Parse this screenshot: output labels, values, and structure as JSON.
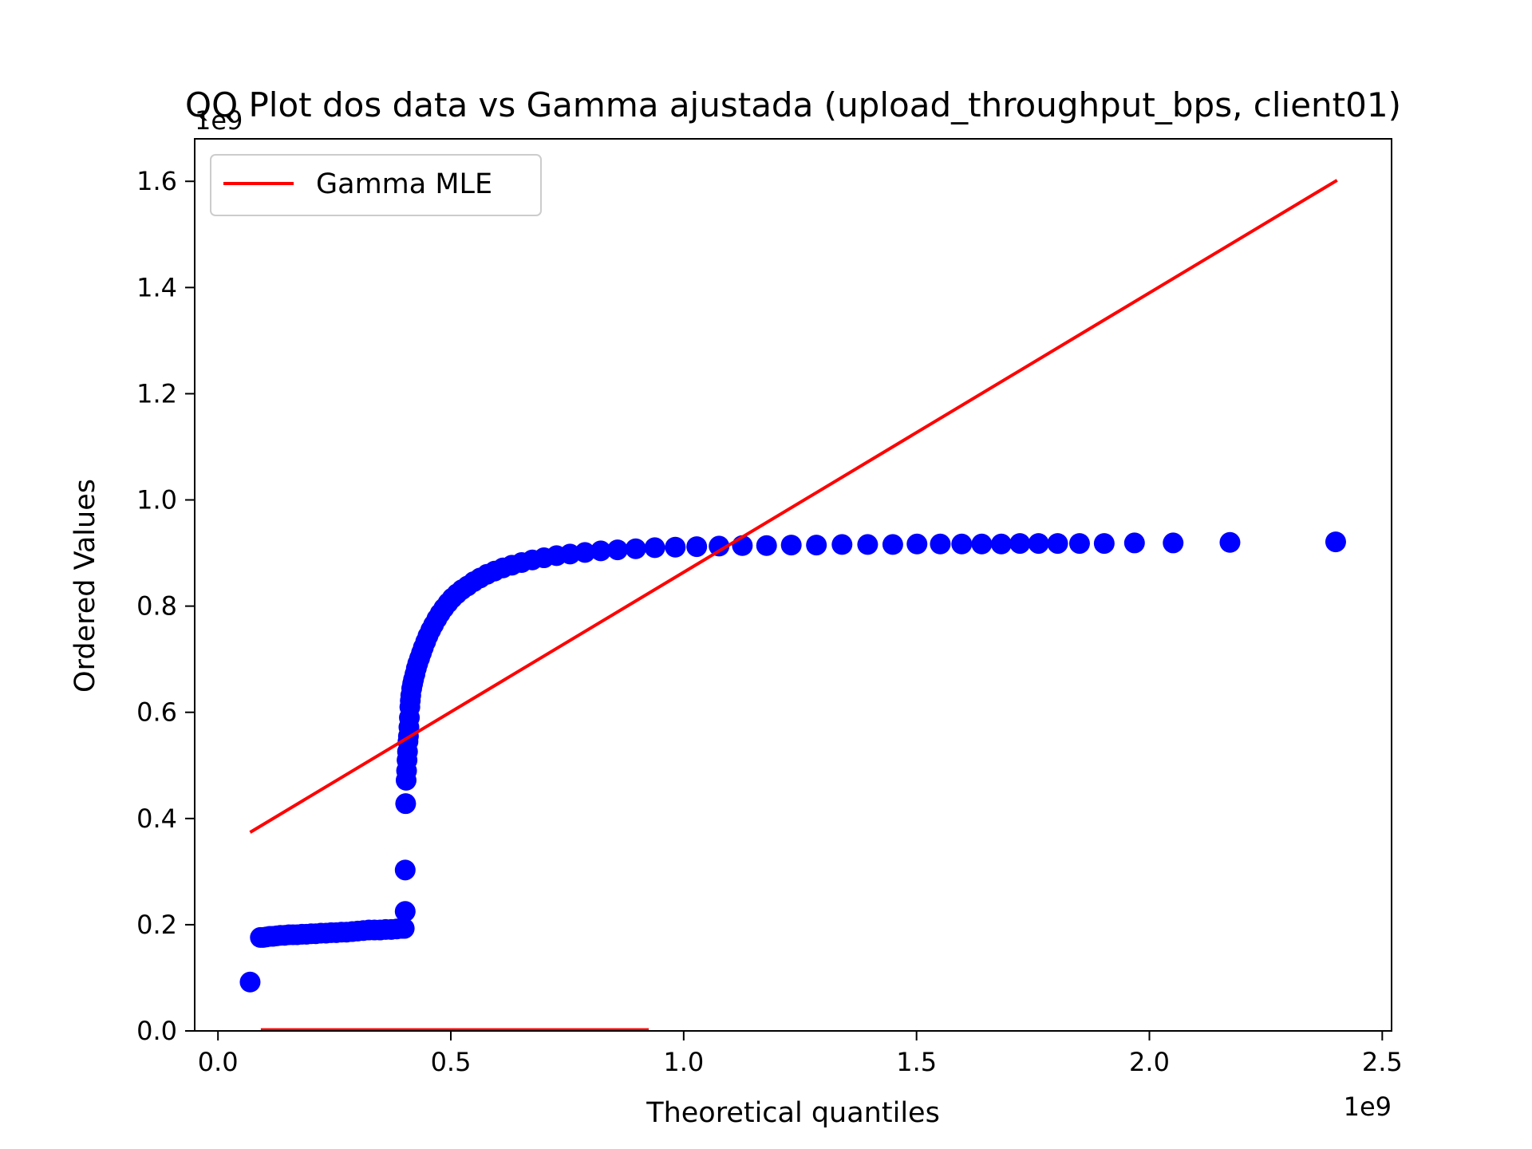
{
  "chart_data": {
    "type": "scatter",
    "title": "QQ Plot dos data vs Gamma ajustada (upload_throughput_bps, client01)",
    "xlabel": "Theoretical quantiles",
    "ylabel": "Ordered Values",
    "x_offset_text": "1e9",
    "y_offset_text": "1e9",
    "xlim": [
      -0.05,
      2.52
    ],
    "ylim": [
      0.0,
      1.68
    ],
    "x_ticks": [
      0.0,
      0.5,
      1.0,
      1.5,
      2.0,
      2.5
    ],
    "x_tick_labels": [
      "0.0",
      "0.5",
      "1.0",
      "1.5",
      "2.0",
      "2.5"
    ],
    "y_ticks": [
      0.0,
      0.2,
      0.4,
      0.6,
      0.8,
      1.0,
      1.2,
      1.4,
      1.6
    ],
    "y_tick_labels": [
      "0.0",
      "0.2",
      "0.4",
      "0.6",
      "0.8",
      "1.0",
      "1.2",
      "1.4",
      "1.6"
    ],
    "legend_position": "top-left",
    "grid": false,
    "series": [
      {
        "kind": "points",
        "color": "#0000ff",
        "points": [
          [
            0.069,
            0.092
          ],
          [
            0.091,
            0.176
          ],
          [
            0.097,
            0.176
          ],
          [
            0.104,
            0.177
          ],
          [
            0.111,
            0.178
          ],
          [
            0.118,
            0.178
          ],
          [
            0.126,
            0.179
          ],
          [
            0.134,
            0.18
          ],
          [
            0.143,
            0.18
          ],
          [
            0.152,
            0.181
          ],
          [
            0.161,
            0.181
          ],
          [
            0.17,
            0.181
          ],
          [
            0.18,
            0.182
          ],
          [
            0.19,
            0.182
          ],
          [
            0.2,
            0.183
          ],
          [
            0.21,
            0.183
          ],
          [
            0.221,
            0.184
          ],
          [
            0.232,
            0.184
          ],
          [
            0.243,
            0.185
          ],
          [
            0.254,
            0.185
          ],
          [
            0.265,
            0.186
          ],
          [
            0.276,
            0.186
          ],
          [
            0.288,
            0.187
          ],
          [
            0.3,
            0.188
          ],
          [
            0.312,
            0.189
          ],
          [
            0.324,
            0.19
          ],
          [
            0.336,
            0.19
          ],
          [
            0.348,
            0.19
          ],
          [
            0.36,
            0.191
          ],
          [
            0.372,
            0.191
          ],
          [
            0.384,
            0.192
          ],
          [
            0.395,
            0.193
          ],
          [
            0.4,
            0.193
          ],
          [
            0.402,
            0.225
          ],
          [
            0.402,
            0.303
          ],
          [
            0.403,
            0.428
          ],
          [
            0.404,
            0.472
          ],
          [
            0.405,
            0.49
          ],
          [
            0.406,
            0.51
          ],
          [
            0.407,
            0.526
          ],
          [
            0.408,
            0.545
          ],
          [
            0.409,
            0.555
          ],
          [
            0.41,
            0.572
          ],
          [
            0.411,
            0.59
          ],
          [
            0.412,
            0.61
          ],
          [
            0.413,
            0.622
          ],
          [
            0.414,
            0.632
          ],
          [
            0.416,
            0.645
          ],
          [
            0.418,
            0.654
          ],
          [
            0.42,
            0.662
          ],
          [
            0.423,
            0.672
          ],
          [
            0.426,
            0.683
          ],
          [
            0.429,
            0.692
          ],
          [
            0.433,
            0.702
          ],
          [
            0.437,
            0.712
          ],
          [
            0.441,
            0.722
          ],
          [
            0.446,
            0.733
          ],
          [
            0.451,
            0.744
          ],
          [
            0.457,
            0.755
          ],
          [
            0.463,
            0.765
          ],
          [
            0.47,
            0.776
          ],
          [
            0.477,
            0.786
          ],
          [
            0.485,
            0.796
          ],
          [
            0.494,
            0.806
          ],
          [
            0.503,
            0.815
          ],
          [
            0.513,
            0.823
          ],
          [
            0.524,
            0.831
          ],
          [
            0.536,
            0.838
          ],
          [
            0.549,
            0.846
          ],
          [
            0.563,
            0.853
          ],
          [
            0.578,
            0.86
          ],
          [
            0.594,
            0.866
          ],
          [
            0.612,
            0.872
          ],
          [
            0.631,
            0.877
          ],
          [
            0.652,
            0.882
          ],
          [
            0.675,
            0.887
          ],
          [
            0.7,
            0.891
          ],
          [
            0.727,
            0.895
          ],
          [
            0.756,
            0.898
          ],
          [
            0.788,
            0.901
          ],
          [
            0.822,
            0.904
          ],
          [
            0.858,
            0.906
          ],
          [
            0.897,
            0.908
          ],
          [
            0.938,
            0.91
          ],
          [
            0.982,
            0.911
          ],
          [
            1.028,
            0.912
          ],
          [
            1.076,
            0.913
          ],
          [
            1.126,
            0.914
          ],
          [
            1.178,
            0.914
          ],
          [
            1.231,
            0.915
          ],
          [
            1.285,
            0.915
          ],
          [
            1.34,
            0.916
          ],
          [
            1.395,
            0.916
          ],
          [
            1.449,
            0.916
          ],
          [
            1.501,
            0.917
          ],
          [
            1.551,
            0.917
          ],
          [
            1.597,
            0.917
          ],
          [
            1.64,
            0.917
          ],
          [
            1.682,
            0.917
          ],
          [
            1.722,
            0.918
          ],
          [
            1.762,
            0.918
          ],
          [
            1.803,
            0.918
          ],
          [
            1.85,
            0.918
          ],
          [
            1.903,
            0.918
          ],
          [
            1.968,
            0.919
          ],
          [
            2.051,
            0.919
          ],
          [
            2.173,
            0.92
          ],
          [
            2.4,
            0.921
          ]
        ]
      },
      {
        "kind": "line",
        "name": "Gamma MLE",
        "color": "#ff0000",
        "x": [
          0.069,
          2.403
        ],
        "y": [
          0.374,
          1.602
        ]
      },
      {
        "kind": "line",
        "color": "#ff0000",
        "x": [
          0.092,
          0.925
        ],
        "y": [
          0.002,
          0.002
        ]
      }
    ]
  }
}
